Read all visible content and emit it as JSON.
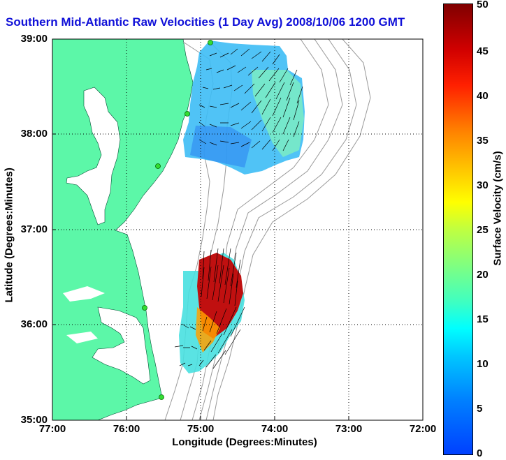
{
  "title": "Southern Mid-Atlantic Raw Velocities (1 Day Avg) 2008/10/06 1200 GMT",
  "map": {
    "x_axis_label": "Longitude (Degrees:Minutes)",
    "y_axis_label": "Latitude (Degrees:Minutes)",
    "lon_ticks": [
      "77:00",
      "76:00",
      "75:00",
      "74:00",
      "73:00",
      "72:00"
    ],
    "lat_ticks": [
      "39:00",
      "38:00",
      "37:00",
      "36:00",
      "35:00"
    ],
    "lon_range": [
      -77,
      -72
    ],
    "lat_range": [
      35,
      39
    ],
    "grid": "dotted",
    "land_color": "#5cf7a8",
    "bathymetry_color": "#999999",
    "arrow_color": "#000000",
    "site_marker_color": "#33dd33"
  },
  "colorbar": {
    "label": "Surface Velocity (cm/s)",
    "ticks": [
      "0",
      "5",
      "10",
      "15",
      "20",
      "25",
      "30",
      "35",
      "40",
      "45",
      "50"
    ],
    "range": [
      0,
      50
    ],
    "colormap": "jet"
  }
}
